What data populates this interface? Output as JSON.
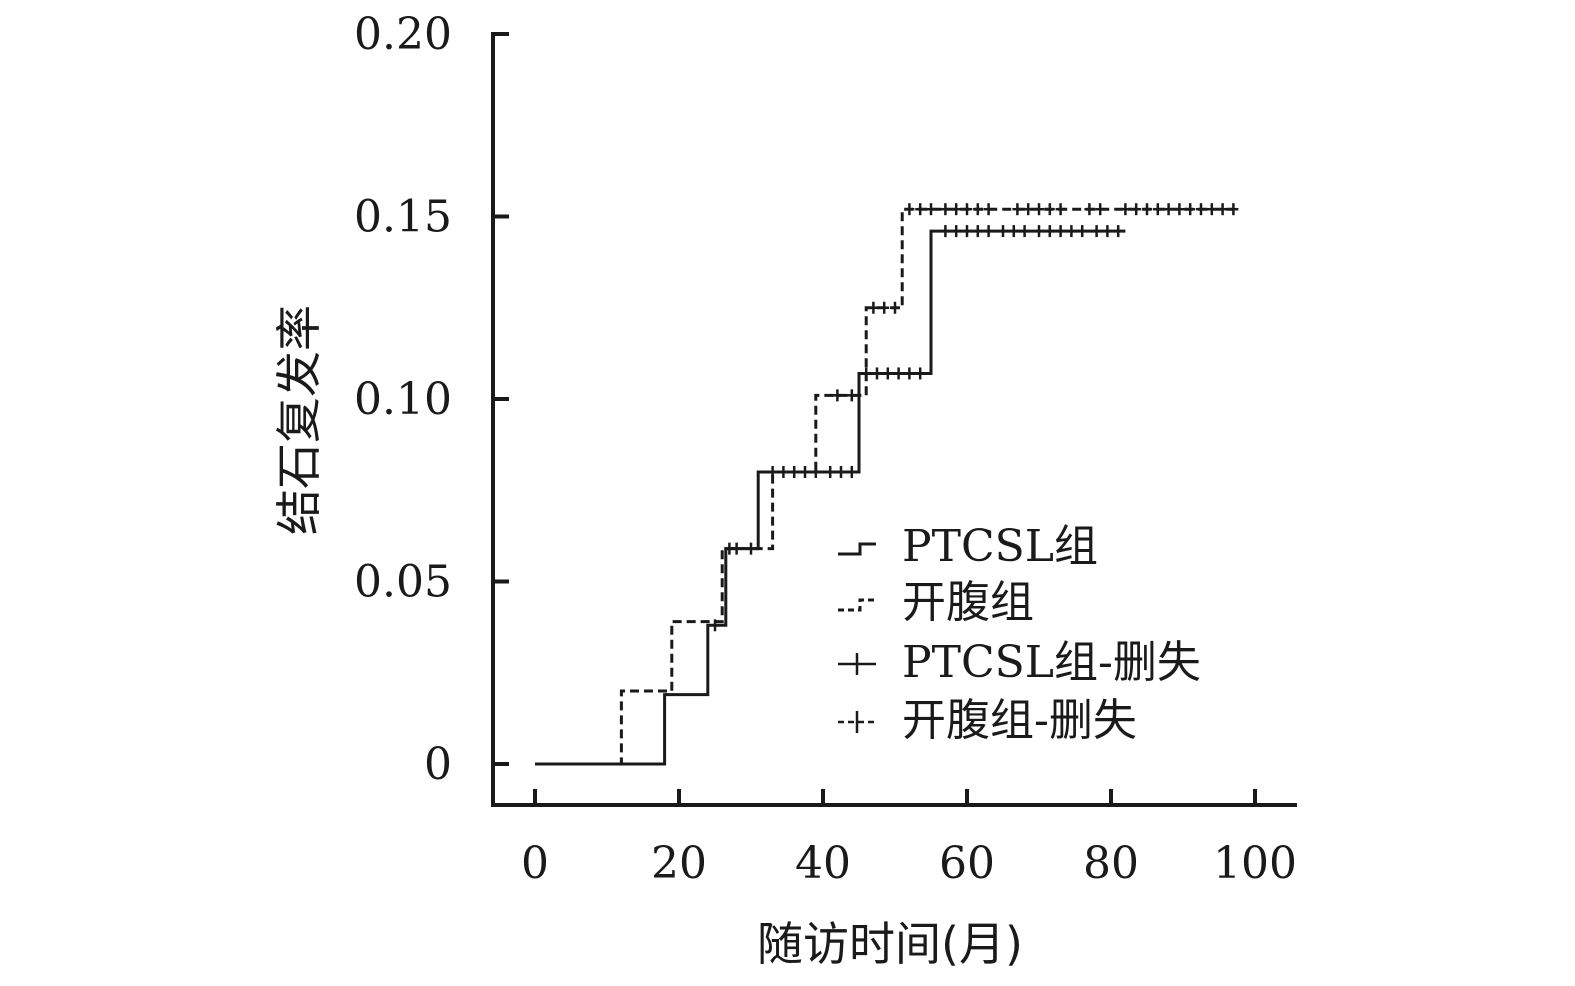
{
  "chart_data": {
    "type": "line",
    "subtype": "kaplan-meier-cumulative-incidence",
    "title": "",
    "xlabel": "随访时间(月)",
    "ylabel": "结石复发率",
    "xlim": [
      0,
      100
    ],
    "ylim": [
      0,
      0.2
    ],
    "x_ticks": [
      "0",
      "20",
      "40",
      "60",
      "80",
      "100"
    ],
    "y_ticks": [
      "0",
      "0.05",
      "0.10",
      "0.15",
      "0.20"
    ],
    "grid": false,
    "legend_position": "center-right",
    "series": [
      {
        "name": "PTCSL组",
        "style": "solid",
        "steps": [
          {
            "x": 0,
            "y": 0
          },
          {
            "x": 18,
            "y": 0.019
          },
          {
            "x": 24,
            "y": 0.038
          },
          {
            "x": 26.5,
            "y": 0.059
          },
          {
            "x": 31,
            "y": 0.08
          },
          {
            "x": 45,
            "y": 0.107
          },
          {
            "x": 55,
            "y": 0.146
          },
          {
            "x": 82,
            "y": 0.146
          }
        ],
        "censored": [
          {
            "x": 25,
            "y": 0.038
          },
          {
            "x": 27,
            "y": 0.059
          },
          {
            "x": 28,
            "y": 0.059
          },
          {
            "x": 33,
            "y": 0.08
          },
          {
            "x": 34.5,
            "y": 0.08
          },
          {
            "x": 36,
            "y": 0.08
          },
          {
            "x": 37.5,
            "y": 0.08
          },
          {
            "x": 39,
            "y": 0.08
          },
          {
            "x": 41,
            "y": 0.08
          },
          {
            "x": 42.5,
            "y": 0.08
          },
          {
            "x": 44,
            "y": 0.08
          },
          {
            "x": 46,
            "y": 0.107
          },
          {
            "x": 47.5,
            "y": 0.107
          },
          {
            "x": 49,
            "y": 0.107
          },
          {
            "x": 50.5,
            "y": 0.107
          },
          {
            "x": 52,
            "y": 0.107
          },
          {
            "x": 53.5,
            "y": 0.107
          },
          {
            "x": 57,
            "y": 0.146
          },
          {
            "x": 58.5,
            "y": 0.146
          },
          {
            "x": 60,
            "y": 0.146
          },
          {
            "x": 61.5,
            "y": 0.146
          },
          {
            "x": 63,
            "y": 0.146
          },
          {
            "x": 65,
            "y": 0.146
          },
          {
            "x": 66.5,
            "y": 0.146
          },
          {
            "x": 68,
            "y": 0.146
          },
          {
            "x": 70,
            "y": 0.146
          },
          {
            "x": 71.5,
            "y": 0.146
          },
          {
            "x": 73,
            "y": 0.146
          },
          {
            "x": 74.5,
            "y": 0.146
          },
          {
            "x": 76,
            "y": 0.146
          },
          {
            "x": 78,
            "y": 0.146
          },
          {
            "x": 79.5,
            "y": 0.146
          },
          {
            "x": 81,
            "y": 0.146
          }
        ]
      },
      {
        "name": "开腹组",
        "style": "dashed",
        "steps": [
          {
            "x": 0,
            "y": 0
          },
          {
            "x": 12,
            "y": 0.02
          },
          {
            "x": 19,
            "y": 0.039
          },
          {
            "x": 26,
            "y": 0.059
          },
          {
            "x": 33,
            "y": 0.08
          },
          {
            "x": 39,
            "y": 0.101
          },
          {
            "x": 46,
            "y": 0.125
          },
          {
            "x": 51,
            "y": 0.152
          },
          {
            "x": 97,
            "y": 0.152
          }
        ],
        "censored": [
          {
            "x": 30,
            "y": 0.059
          },
          {
            "x": 42,
            "y": 0.101
          },
          {
            "x": 44,
            "y": 0.101
          },
          {
            "x": 47,
            "y": 0.125
          },
          {
            "x": 48.5,
            "y": 0.125
          },
          {
            "x": 50,
            "y": 0.125
          },
          {
            "x": 52,
            "y": 0.152
          },
          {
            "x": 53.5,
            "y": 0.152
          },
          {
            "x": 55,
            "y": 0.152
          },
          {
            "x": 57,
            "y": 0.152
          },
          {
            "x": 58.5,
            "y": 0.152
          },
          {
            "x": 60,
            "y": 0.152
          },
          {
            "x": 61.5,
            "y": 0.152
          },
          {
            "x": 63,
            "y": 0.152
          },
          {
            "x": 67,
            "y": 0.152
          },
          {
            "x": 68.5,
            "y": 0.152
          },
          {
            "x": 70,
            "y": 0.152
          },
          {
            "x": 71.5,
            "y": 0.152
          },
          {
            "x": 73,
            "y": 0.152
          },
          {
            "x": 77,
            "y": 0.152
          },
          {
            "x": 78.5,
            "y": 0.152
          },
          {
            "x": 82,
            "y": 0.152
          },
          {
            "x": 83.5,
            "y": 0.152
          },
          {
            "x": 85,
            "y": 0.152
          },
          {
            "x": 86.5,
            "y": 0.152
          },
          {
            "x": 88,
            "y": 0.152
          },
          {
            "x": 89.5,
            "y": 0.152
          },
          {
            "x": 91,
            "y": 0.152
          },
          {
            "x": 92.5,
            "y": 0.152
          },
          {
            "x": 94,
            "y": 0.152
          },
          {
            "x": 95.5,
            "y": 0.152
          },
          {
            "x": 97,
            "y": 0.152
          }
        ]
      }
    ],
    "legend": [
      {
        "label": "PTCSL组",
        "symbol": "solid-step"
      },
      {
        "label": "开腹组",
        "symbol": "dashed-step"
      },
      {
        "label": "PTCSL组-删失",
        "symbol": "solid-plus"
      },
      {
        "label": "开腹组-删失",
        "symbol": "dashed-plus"
      }
    ]
  }
}
